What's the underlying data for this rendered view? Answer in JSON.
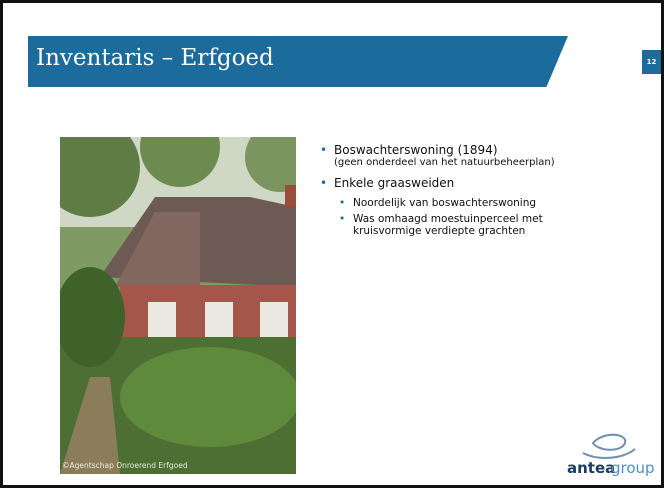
{
  "header": {
    "title": "Inventaris – Erfgoed",
    "page_number": "12"
  },
  "image": {
    "caption": "©Agentschap Onroerend Erfgoed"
  },
  "bullets": [
    {
      "text": "Boswachterswoning (1894)",
      "note": "(geen onderdeel van het natuurbeheerplan)"
    },
    {
      "text": "Enkele graasweiden",
      "sub": [
        "Noordelijk van boswachterswoning",
        "Was omhaagd moestuinperceel met kruisvormige verdiepte grachten"
      ]
    }
  ],
  "logo": {
    "brand": "antea",
    "suffix": "group"
  }
}
